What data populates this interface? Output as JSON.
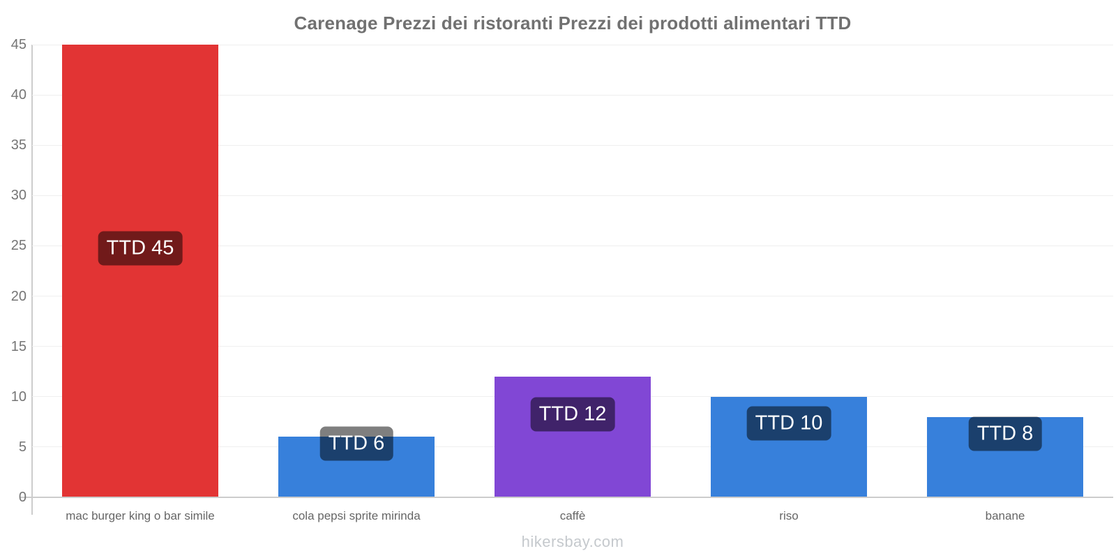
{
  "title": "Carenage Prezzi dei ristoranti Prezzi dei prodotti alimentari TTD",
  "watermark": "hikersbay.com",
  "chart_data": {
    "type": "bar",
    "title": "Carenage Prezzi dei ristoranti Prezzi dei prodotti alimentari TTD",
    "currency": "TTD",
    "categories": [
      "mac burger king o bar simile",
      "cola pepsi sprite mirinda",
      "caffè",
      "riso",
      "banane"
    ],
    "values": [
      45,
      6,
      12,
      10,
      8
    ],
    "bar_labels": [
      "TTD 45",
      "TTD 6",
      "TTD 12",
      "TTD 10",
      "TTD 8"
    ],
    "bar_colors": [
      "#e23434",
      "#3780db",
      "#8147d5",
      "#3780db",
      "#3780db"
    ],
    "xlabel": "",
    "ylabel": "",
    "ylim": [
      0,
      45
    ],
    "yticks": [
      0,
      5,
      10,
      15,
      20,
      25,
      30,
      35,
      40,
      45
    ],
    "grid": true,
    "legend": false,
    "gridline_color": "#efefef",
    "axis_color": "#cccccc",
    "tick_label_color": "#757575",
    "category_label_color": "#666666",
    "badge_bg": "rgba(0,0,0,0.5)",
    "badge_text_color": "#ffffff"
  }
}
